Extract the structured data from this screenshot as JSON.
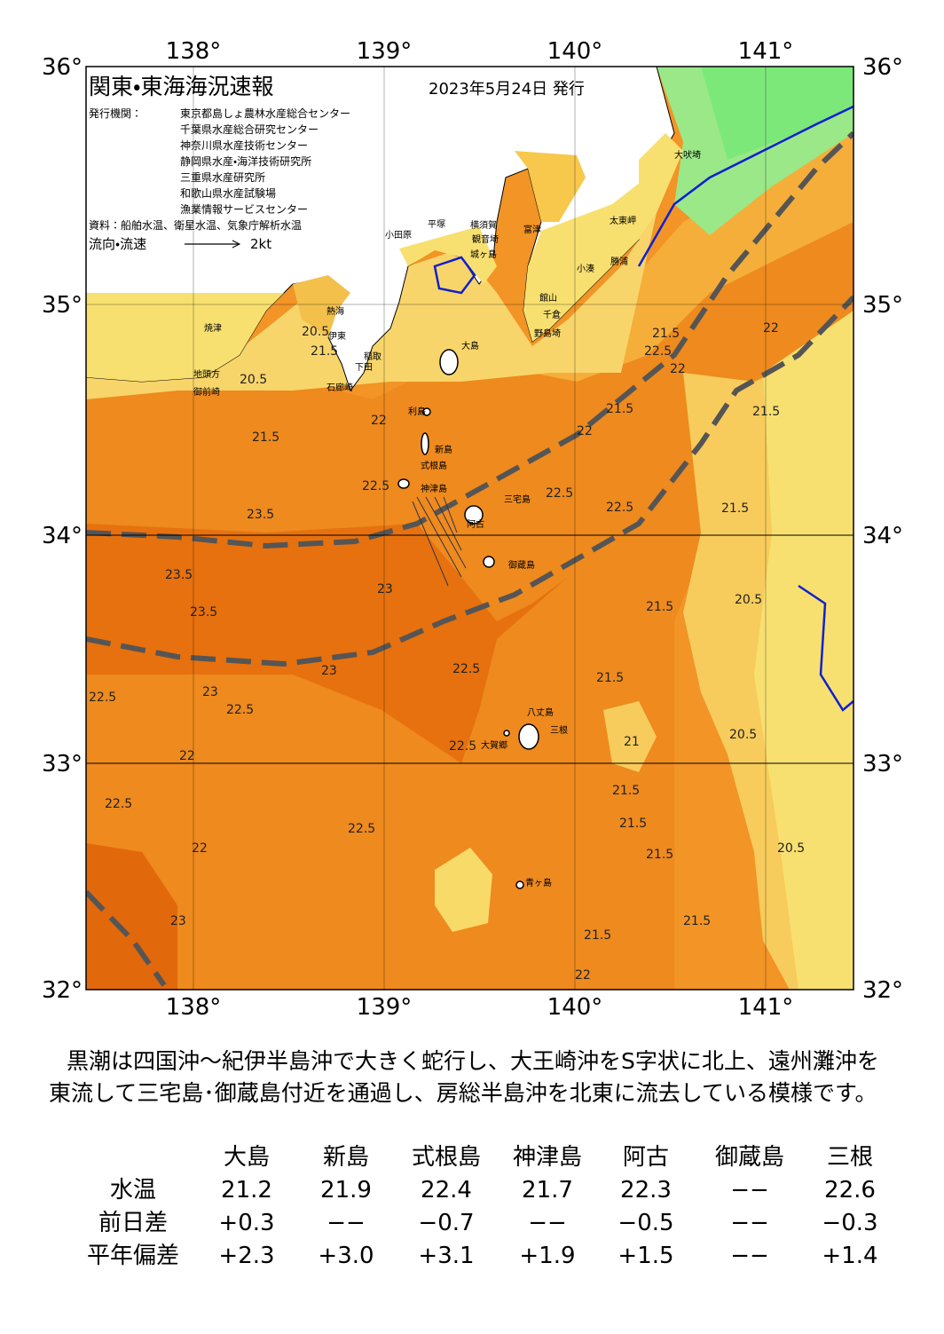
{
  "header": {
    "title": "関東・東海海況速報",
    "date": "2023年5月24日 発行",
    "issuer_label": "発行機関：",
    "issuers": [
      "東京都島しょ農林水産総合センター",
      "千葉県水産総合研究センター",
      "神奈川県水産技術センター",
      "静岡県水産・海洋技術研究所",
      "三重県水産研究所",
      "和歌山県水産試験場",
      "漁業情報サービスセンター"
    ],
    "source": "資料：船舶水温、衛星水温、気象庁解析水温",
    "legend_label": "流向・流速",
    "legend_speed": "2kt"
  },
  "axes": {
    "longitudes": [
      "138°",
      "139°",
      "140°",
      "141°"
    ],
    "latitudes": [
      "36°",
      "35°",
      "34°",
      "33°",
      "32°"
    ]
  },
  "places": [
    "大吠埼",
    "太東岬",
    "勝浦",
    "小湊",
    "館山",
    "千倉",
    "野島埼",
    "富津",
    "観音埼",
    "横須賀",
    "城ヶ島",
    "平塚",
    "小田原",
    "熱海",
    "伊東",
    "稲取",
    "下田",
    "石廊崎",
    "焼津",
    "御前崎",
    "地頭方",
    "大島",
    "利島",
    "新島",
    "式根島",
    "神津島",
    "三宅島",
    "阿古",
    "御蔵島",
    "八丈島",
    "三根",
    "大賀郷",
    "青ヶ島"
  ],
  "isotherm_labels": [
    "20.5",
    "21.5",
    "20.5",
    "22",
    "21.5",
    "22.5",
    "23.5",
    "22.5",
    "22.5",
    "21.5",
    "22",
    "22.5",
    "21.5",
    "22",
    "21.5",
    "22",
    "21.5",
    "20.5",
    "21.5",
    "23.5",
    "23.5",
    "23",
    "23",
    "23",
    "22.5",
    "22.5",
    "22",
    "22.5",
    "21.5",
    "21",
    "20.5",
    "21.5",
    "21.5",
    "21.5",
    "20.5",
    "22",
    "22.5",
    "21.5",
    "21.5",
    "22",
    "22.5",
    "23",
    "22.5"
  ],
  "summary": "黒潮は四国沖～紀伊半島沖で大きく蛇行し、大王崎沖をS字状に北上、遠州灘沖を東流して三宅島･御蔵島付近を通過し、房総半島沖を北東に流去している模様です。",
  "table": {
    "columns": [
      "大島",
      "新島",
      "式根島",
      "神津島",
      "阿古",
      "御蔵島",
      "三根"
    ],
    "rows": [
      {
        "label": "水温",
        "cells": [
          "21.2",
          "21.9",
          "22.4",
          "21.7",
          "22.3",
          "−−",
          "22.6"
        ]
      },
      {
        "label": "前日差",
        "cells": [
          "+0.3",
          "−−",
          "−0.7",
          "−−",
          "−0.5",
          "−−",
          "−0.3"
        ]
      },
      {
        "label": "平年偏差",
        "cells": [
          "+2.3",
          "+3.0",
          "+3.1",
          "+1.9",
          "+1.5",
          "−−",
          "+1.4"
        ]
      }
    ]
  }
}
